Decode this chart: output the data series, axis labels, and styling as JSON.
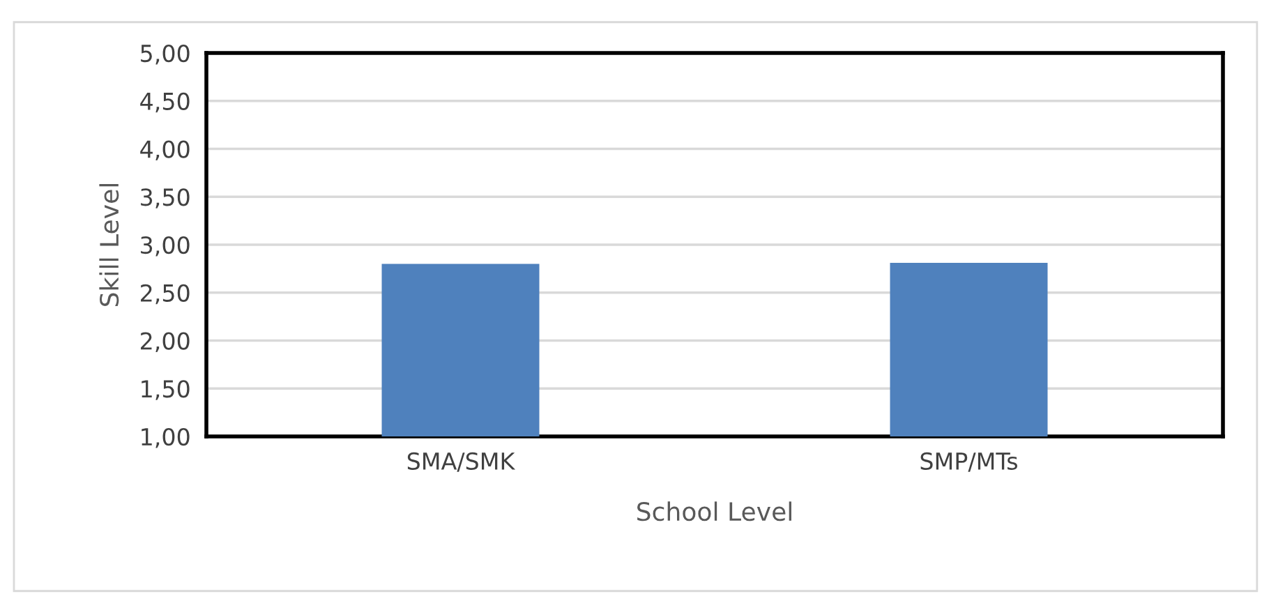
{
  "chart_data": {
    "type": "bar",
    "xlabel": "School Level",
    "ylabel": "Skill Level",
    "categories": [
      "SMA/SMK",
      "SMP/MTs"
    ],
    "values": [
      2.8,
      2.81
    ],
    "color": "#4f81bd",
    "ylim": [
      1,
      5
    ],
    "yticks": [
      {
        "value": 1,
        "label": "1,00"
      },
      {
        "value": 1.5,
        "label": "1,50"
      },
      {
        "value": 2,
        "label": "2,00"
      },
      {
        "value": 2.5,
        "label": "2,50"
      },
      {
        "value": 3,
        "label": "3,00"
      },
      {
        "value": 3.5,
        "label": "3,50"
      },
      {
        "value": 4,
        "label": "4,00"
      },
      {
        "value": 4.5,
        "label": "4,50"
      },
      {
        "value": 5,
        "label": "5,00"
      }
    ],
    "grid": "y",
    "legend": false
  }
}
